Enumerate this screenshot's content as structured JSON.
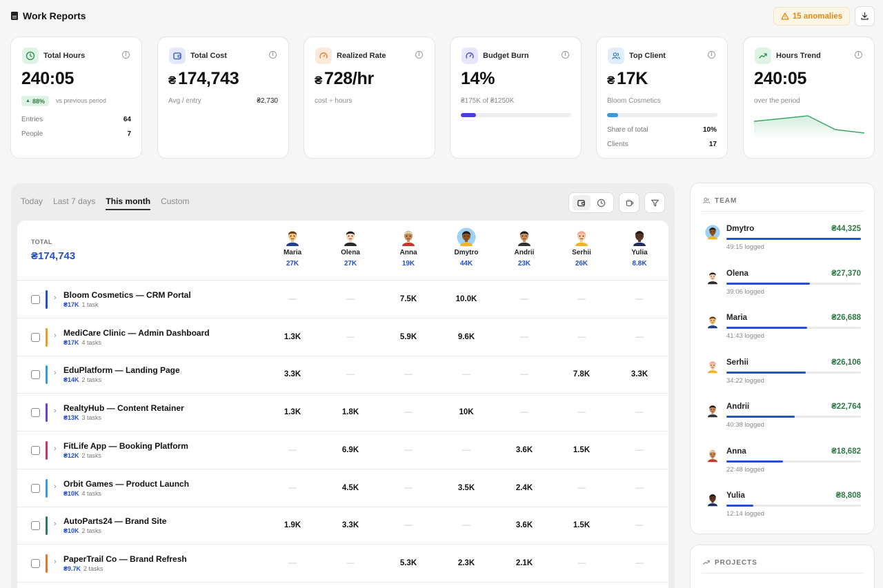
{
  "header": {
    "title": "Work Reports",
    "anomalies": "15 anomalies"
  },
  "kpis": {
    "total_hours": {
      "label": "Total Hours",
      "value": "240:05",
      "badge": "88%",
      "badge_note": "vs previous period",
      "rows": [
        {
          "label": "Entries",
          "value": "64"
        },
        {
          "label": "People",
          "value": "7"
        }
      ]
    },
    "total_cost": {
      "label": "Total Cost",
      "currency": "₴",
      "value": "174,743",
      "sub": "Avg / entry",
      "sub_value": "₴2,730"
    },
    "realized_rate": {
      "label": "Realized Rate",
      "currency": "₴",
      "value": "728/hr",
      "sub": "cost ÷ hours"
    },
    "budget_burn": {
      "label": "Budget Burn",
      "value": "14%",
      "sub": "₴175K of ₴1250K",
      "progress": 0.14
    },
    "top_client": {
      "label": "Top Client",
      "currency": "₴",
      "value": "17K",
      "sub": "Bloom Cosmetics",
      "progress": 0.1,
      "rows": [
        {
          "label": "Share of total",
          "value": "10%"
        },
        {
          "label": "Clients",
          "value": "17"
        }
      ]
    },
    "hours_trend": {
      "label": "Hours Trend",
      "value": "240:05",
      "sub": "over the period"
    }
  },
  "tabs": [
    "Today",
    "Last 7 days",
    "This month",
    "Custom"
  ],
  "active_tab": "This month",
  "table": {
    "total_label": "TOTAL",
    "total_value": "₴174,743",
    "people": [
      {
        "name": "Maria",
        "amount": "27K"
      },
      {
        "name": "Olena",
        "amount": "27K"
      },
      {
        "name": "Anna",
        "amount": "19K"
      },
      {
        "name": "Dmytro",
        "amount": "44K"
      },
      {
        "name": "Andrii",
        "amount": "23K"
      },
      {
        "name": "Serhii",
        "amount": "26K"
      },
      {
        "name": "Yulia",
        "amount": "8.8K"
      }
    ],
    "rows": [
      {
        "name": "Bloom Cosmetics — CRM Portal",
        "cost": "₴17K",
        "tasks": "1 task",
        "color": "#2450c8",
        "cells": [
          "—",
          "—",
          "7.5K",
          "10.0K",
          "—",
          "—",
          "—"
        ]
      },
      {
        "name": "MediCare Clinic — Admin Dashboard",
        "cost": "₴17K",
        "tasks": "4 tasks",
        "color": "#e0a32a",
        "cells": [
          "1.3K",
          "—",
          "5.9K",
          "9.6K",
          "—",
          "—",
          "—"
        ]
      },
      {
        "name": "EduPlatform — Landing Page",
        "cost": "₴14K",
        "tasks": "2 tasks",
        "color": "#3b9ad9",
        "cells": [
          "3.3K",
          "—",
          "—",
          "—",
          "—",
          "7.8K",
          "3.3K"
        ]
      },
      {
        "name": "RealtyHub — Content Retainer",
        "cost": "₴13K",
        "tasks": "3 tasks",
        "color": "#6a3fd1",
        "cells": [
          "1.3K",
          "1.8K",
          "—",
          "10K",
          "—",
          "—",
          "—"
        ]
      },
      {
        "name": "FitLife App — Booking Platform",
        "cost": "₴12K",
        "tasks": "2 tasks",
        "color": "#c23a6a",
        "cells": [
          "—",
          "6.9K",
          "—",
          "—",
          "3.6K",
          "1.5K",
          "—"
        ]
      },
      {
        "name": "Orbit Games — Product Launch",
        "cost": "₴10K",
        "tasks": "4 tasks",
        "color": "#3b9ad9",
        "cells": [
          "—",
          "4.5K",
          "—",
          "3.5K",
          "2.4K",
          "—",
          "—"
        ]
      },
      {
        "name": "AutoParts24 — Brand Site",
        "cost": "₴10K",
        "tasks": "2 tasks",
        "color": "#2e7a5a",
        "cells": [
          "1.9K",
          "3.3K",
          "—",
          "—",
          "3.6K",
          "1.5K",
          "—"
        ]
      },
      {
        "name": "PaperTrail Co — Brand Refresh",
        "cost": "₴9.7K",
        "tasks": "2 tasks",
        "color": "#e07a2a",
        "cells": [
          "—",
          "—",
          "5.3K",
          "2.3K",
          "2.1K",
          "—",
          "—"
        ]
      }
    ]
  },
  "team": {
    "title": "TEAM",
    "members": [
      {
        "name": "Dmytro",
        "amount": "₴44,325",
        "logged": "49:15 logged",
        "share": 1.0
      },
      {
        "name": "Olena",
        "amount": "₴27,370",
        "logged": "39:06 logged",
        "share": 0.62
      },
      {
        "name": "Maria",
        "amount": "₴26,688",
        "logged": "41:43 logged",
        "share": 0.6
      },
      {
        "name": "Serhii",
        "amount": "₴26,106",
        "logged": "34:22 logged",
        "share": 0.59
      },
      {
        "name": "Andrii",
        "amount": "₴22,764",
        "logged": "40:38 logged",
        "share": 0.51
      },
      {
        "name": "Anna",
        "amount": "₴18,682",
        "logged": "22:48 logged",
        "share": 0.42
      },
      {
        "name": "Yulia",
        "amount": "₴8,808",
        "logged": "12:14 logged",
        "share": 0.2
      }
    ]
  },
  "projects": {
    "title": "PROJECTS"
  },
  "icons": {
    "doc": "document-icon",
    "warning": "warning-icon",
    "download": "download-icon",
    "clock": "clock-icon",
    "wallet": "wallet-icon",
    "gauge": "gauge-icon",
    "users": "users-icon",
    "trend": "trend-up-icon",
    "coffee": "coffee-icon",
    "filter": "filter-icon"
  }
}
